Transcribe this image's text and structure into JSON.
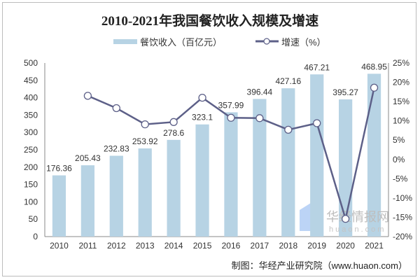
{
  "chart_data": {
    "type": "bar+line",
    "title": "2010-2021年我国餐饮收入规模及增速",
    "categories": [
      "2010",
      "2011",
      "2012",
      "2013",
      "2014",
      "2015",
      "2016",
      "2017",
      "2018",
      "2019",
      "2020",
      "2021"
    ],
    "series": [
      {
        "name": "餐饮收入（百亿元）",
        "type": "bar",
        "axis": "left",
        "color": "#b7d3e4",
        "values": [
          176.36,
          205.43,
          232.83,
          253.92,
          278.6,
          323.1,
          357.99,
          396.44,
          427.16,
          467.21,
          395.27,
          468.95
        ],
        "labels": [
          "176.36",
          "205.43",
          "232.83",
          "253.92",
          "278.6",
          "323.1",
          "357.99",
          "396.44",
          "427.16",
          "467.21",
          "395.27",
          "468.95"
        ]
      },
      {
        "name": "增速（%）",
        "type": "line",
        "axis": "right",
        "color": "#5d6088",
        "values": [
          null,
          16.5,
          13.3,
          9.1,
          9.7,
          16.0,
          10.8,
          10.7,
          7.7,
          9.4,
          -15.4,
          18.6
        ]
      }
    ],
    "left_axis": {
      "range": [
        0,
        500
      ],
      "ticks": [
        "0",
        "50",
        "100",
        "150",
        "200",
        "250",
        "300",
        "350",
        "400",
        "450",
        "500"
      ]
    },
    "right_axis": {
      "range": [
        -20,
        25
      ],
      "ticks": [
        "-20%",
        "-15%",
        "-10%",
        "-5%",
        "0%",
        "5%",
        "10%",
        "15%",
        "20%",
        "25%"
      ]
    },
    "grid": false,
    "legend_placement": "top"
  },
  "source": "制图：华经产业研究院（www.huaon.com）",
  "watermark": {
    "cn": "华经情报网",
    "en": "huaon.com"
  }
}
